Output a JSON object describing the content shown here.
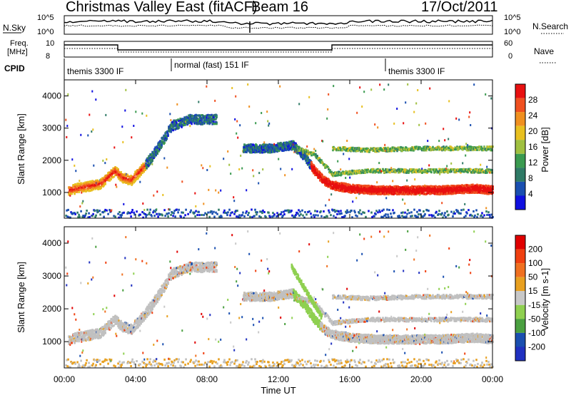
{
  "header": {
    "station": "Christmas Valley East (fitACF)",
    "beam": "Beam 16",
    "date": "17/Oct/2011"
  },
  "panels": {
    "nsky_label": "N.Sky",
    "nsky_ticks": [
      "10^5",
      "10^0"
    ],
    "nsearch_label": "N.Search",
    "nsearch_ticks": [
      "10^5",
      "10^0"
    ],
    "freq_label_line1": "Freq.",
    "freq_label_line2": "[MHz]",
    "freq_ticks": [
      "10",
      "8"
    ],
    "nave_label": "Nave",
    "nave_ticks": [
      "60",
      "0"
    ],
    "cpid_label": "CPID",
    "cpid_segments": [
      {
        "label": "themis 3300 IF",
        "start_hour": 0
      },
      {
        "label": "normal (fast) 151 IF",
        "start_hour": 6
      },
      {
        "label": "themis 3300 IF",
        "start_hour": 18
      }
    ]
  },
  "colors": {
    "power_scale": [
      "#1010e0",
      "#1a4fb0",
      "#2f7a66",
      "#3a9a50",
      "#a0c040",
      "#e8c020",
      "#f09020",
      "#f05020",
      "#e81010"
    ],
    "velocity_scale": [
      "#2030c0",
      "#1a4fb0",
      "#4aa040",
      "#8fd050",
      "#c8c8c8",
      "#e8a020",
      "#f07020",
      "#f04010",
      "#e00000"
    ],
    "gray_scatter": "#c0c0c0"
  },
  "chart_data": [
    {
      "type": "heatmap",
      "name": "power",
      "ylabel": "Slant Range [km]",
      "yticks": [
        1000,
        2000,
        3000,
        4000
      ],
      "ylim": [
        200,
        4500
      ],
      "xlim_hours": [
        0,
        24
      ],
      "colorbar_label": "Power [dB]",
      "colorbar_ticks": [
        "28",
        "24",
        "20",
        "16",
        "12",
        "8",
        "4"
      ],
      "bands": [
        {
          "x": [
            0.2,
            2.0,
            2.8,
            3.2,
            3.7,
            4.4,
            5.2,
            6.0,
            7.0,
            8.5,
            10.0,
            11.5,
            12.8,
            13.5,
            14.5,
            15.5,
            17.0,
            19.0,
            21.0,
            23.0,
            24.0
          ],
          "y": [
            1100,
            1300,
            1700,
            1500,
            1400,
            1800,
            2400,
            3100,
            3300,
            3300,
            null,
            null,
            null,
            null,
            null,
            null,
            null,
            null,
            null,
            null,
            null
          ]
        },
        {
          "x": [
            10.0,
            11.5,
            12.8,
            13.5,
            14.0,
            14.5,
            15.0,
            16.0,
            17.5,
            19.0,
            21.0,
            23.0,
            24.0
          ],
          "y": [
            2400,
            2400,
            2500,
            2100,
            1700,
            1400,
            1250,
            1150,
            1100,
            1100,
            1100,
            1150,
            1100
          ]
        },
        {
          "x": [
            13.0,
            14.0,
            15.0,
            17.0,
            20.0,
            24.0
          ],
          "y": [
            2400,
            2200,
            1600,
            1700,
            1700,
            1700
          ]
        },
        {
          "x": [
            15.0,
            17.0,
            20.0,
            24.0
          ],
          "y": [
            2400,
            2350,
            2400,
            2400
          ]
        }
      ]
    },
    {
      "type": "heatmap",
      "name": "velocity",
      "xlabel": "Time UT",
      "ylabel": "Slant Range [km]",
      "yticks": [
        1000,
        2000,
        3000,
        4000
      ],
      "ylim": [
        200,
        4500
      ],
      "xlim_hours": [
        0,
        24
      ],
      "xticks": [
        "00:00",
        "04:00",
        "08:00",
        "12:00",
        "16:00",
        "20:00",
        "00:00"
      ],
      "colorbar_label": "Velocity [m s-1]",
      "colorbar_ticks": [
        "200",
        "100",
        "50",
        "15",
        "-15",
        "-50",
        "-100",
        "-200"
      ]
    }
  ]
}
